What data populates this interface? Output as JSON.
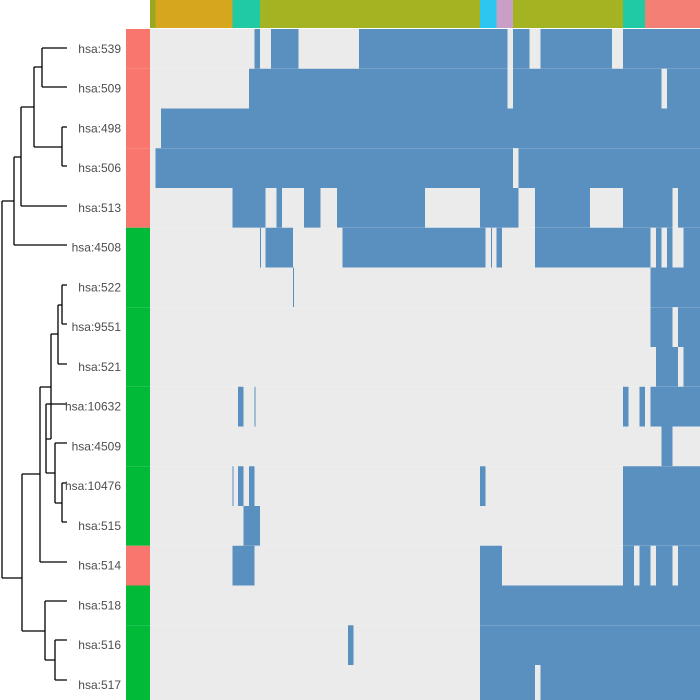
{
  "chart_data": {
    "type": "heatmap",
    "rows": [
      {
        "label": "hsa:539",
        "group": "salmon",
        "runs": [
          [
            0.19,
            0.2
          ],
          [
            0.22,
            0.27
          ],
          [
            0.38,
            0.65
          ],
          [
            0.66,
            0.69
          ],
          [
            0.71,
            0.84
          ],
          [
            0.86,
            1.0
          ]
        ]
      },
      {
        "label": "hsa:509",
        "group": "salmon",
        "runs": [
          [
            0.18,
            0.2
          ],
          [
            0.2,
            0.65
          ],
          [
            0.66,
            0.7
          ],
          [
            0.7,
            0.93
          ],
          [
            0.94,
            1.0
          ]
        ]
      },
      {
        "label": "hsa:498",
        "group": "salmon",
        "runs": [
          [
            0.02,
            1.0
          ]
        ]
      },
      {
        "label": "hsa:506",
        "group": "salmon",
        "runs": [
          [
            0.01,
            0.36
          ],
          [
            0.36,
            0.66
          ],
          [
            0.67,
            0.84
          ],
          [
            0.84,
            1.0
          ]
        ]
      },
      {
        "label": "hsa:513",
        "group": "salmon",
        "runs": [
          [
            0.15,
            0.21
          ],
          [
            0.23,
            0.24
          ],
          [
            0.28,
            0.31
          ],
          [
            0.34,
            0.5
          ],
          [
            0.6,
            0.67
          ],
          [
            0.7,
            0.8
          ],
          [
            0.86,
            0.93
          ],
          [
            0.93,
            0.95
          ],
          [
            0.96,
            1.0
          ]
        ]
      },
      {
        "label": "hsa:4508",
        "group": "green",
        "runs": [
          [
            0.2,
            0.2
          ],
          [
            0.21,
            0.26
          ],
          [
            0.35,
            0.61
          ],
          [
            0.62,
            0.62
          ],
          [
            0.63,
            0.64
          ],
          [
            0.7,
            0.91
          ],
          [
            0.92,
            0.93
          ],
          [
            0.94,
            0.95
          ],
          [
            0.97,
            1.0
          ]
        ]
      },
      {
        "label": "hsa:522",
        "group": "green",
        "runs": [
          [
            0.26,
            0.26
          ],
          [
            0.91,
            1.0
          ]
        ]
      },
      {
        "label": "hsa:9551",
        "group": "green",
        "runs": [
          [
            0.91,
            0.95
          ],
          [
            0.96,
            1.0
          ]
        ]
      },
      {
        "label": "hsa:521",
        "group": "green",
        "runs": [
          [
            0.92,
            0.96
          ],
          [
            0.97,
            1.0
          ]
        ]
      },
      {
        "label": "hsa:10632",
        "group": "green",
        "runs": [
          [
            0.16,
            0.17
          ],
          [
            0.19,
            0.19
          ],
          [
            0.86,
            0.87
          ],
          [
            0.89,
            0.9
          ],
          [
            0.91,
            1.0
          ]
        ]
      },
      {
        "label": "hsa:4509",
        "group": "green",
        "runs": [
          [
            0.93,
            0.94
          ],
          [
            0.94,
            0.95
          ]
        ]
      },
      {
        "label": "hsa:10476",
        "group": "green",
        "runs": [
          [
            0.15,
            0.15
          ],
          [
            0.16,
            0.17
          ],
          [
            0.18,
            0.19
          ],
          [
            0.6,
            0.61
          ],
          [
            0.86,
            1.0
          ]
        ]
      },
      {
        "label": "hsa:515",
        "group": "green",
        "runs": [
          [
            0.17,
            0.2
          ],
          [
            0.86,
            1.0
          ]
        ]
      },
      {
        "label": "hsa:514",
        "group": "salmon",
        "runs": [
          [
            0.15,
            0.18
          ],
          [
            0.18,
            0.19
          ],
          [
            0.6,
            0.64
          ],
          [
            0.86,
            0.88
          ],
          [
            0.89,
            0.91
          ],
          [
            0.92,
            0.95
          ],
          [
            0.96,
            1.0
          ]
        ]
      },
      {
        "label": "hsa:518",
        "group": "green",
        "runs": [
          [
            0.6,
            1.0
          ]
        ]
      },
      {
        "label": "hsa:516",
        "group": "green",
        "runs": [
          [
            0.36,
            0.37
          ],
          [
            0.6,
            1.0
          ]
        ]
      },
      {
        "label": "hsa:517",
        "group": "green",
        "runs": [
          [
            0.6,
            0.7
          ],
          [
            0.71,
            1.0
          ]
        ]
      }
    ],
    "column_annotation": [
      {
        "from": 0.0,
        "to": 0.01,
        "color": "#9aa81f"
      },
      {
        "from": 0.01,
        "to": 0.15,
        "color": "#d6a71c"
      },
      {
        "from": 0.15,
        "to": 0.2,
        "color": "#1fcaa4"
      },
      {
        "from": 0.2,
        "to": 0.6,
        "color": "#a4b321"
      },
      {
        "from": 0.6,
        "to": 0.63,
        "color": "#2dc6f0"
      },
      {
        "from": 0.63,
        "to": 0.66,
        "color": "#c99fc8"
      },
      {
        "from": 0.66,
        "to": 0.86,
        "color": "#a4b321"
      },
      {
        "from": 0.86,
        "to": 0.9,
        "color": "#1fcaa4"
      },
      {
        "from": 0.9,
        "to": 1.0,
        "color": "#f47f74"
      }
    ],
    "colors": {
      "present": "#5a90c0",
      "absent": "#ebebeb",
      "salmon": "#f8766d",
      "green": "#00ba38",
      "dendrogram": "#000000",
      "label": "#4d4d4d"
    }
  }
}
